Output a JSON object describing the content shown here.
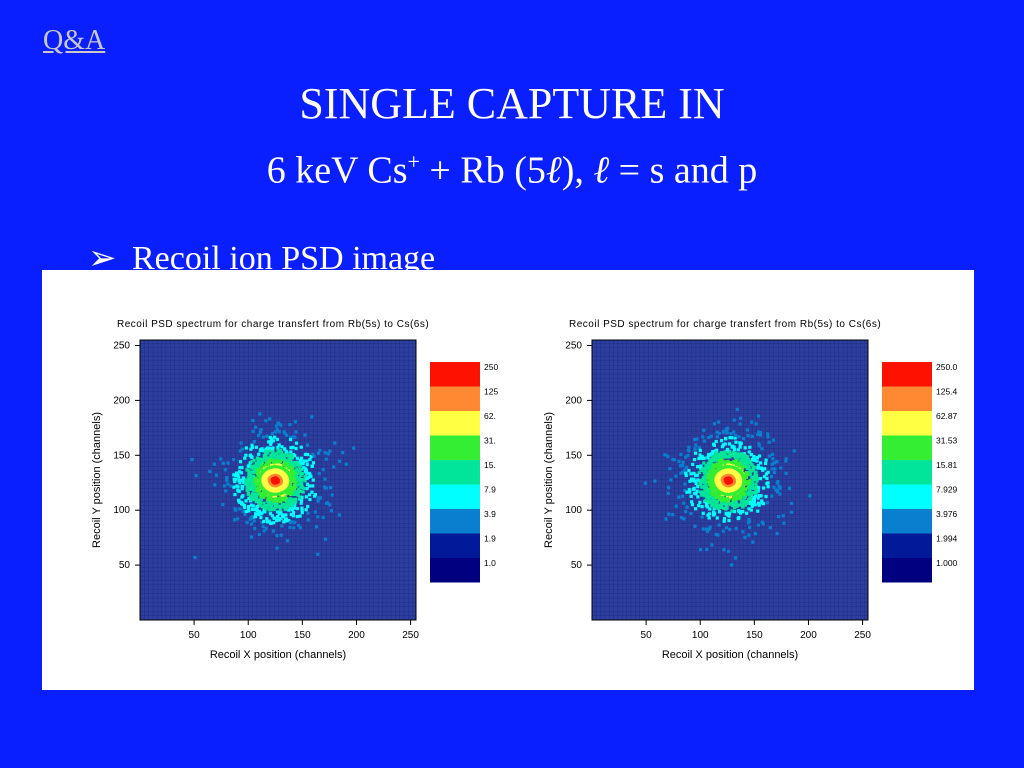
{
  "link": {
    "qa": "Q&A"
  },
  "slide": {
    "title": "SINGLE CAPTURE IN",
    "subtitle_prefix": "6 keV Cs",
    "subtitle_sup": "+",
    "subtitle_mid": " + Rb (5",
    "subtitle_ell": "ℓ",
    "subtitle_mid2": "), ",
    "subtitle_ell2": "ℓ",
    "subtitle_suffix": " = s and p",
    "bullet": "Recoil ion PSD image",
    "bullet_arrow": "➢"
  },
  "colors": {
    "background": "#0a1fff",
    "plot_bg": "#2d3f9e",
    "colormap": [
      "#000080",
      "#001a9a",
      "#0a7fd0",
      "#00ffff",
      "#00e59a",
      "#33ee33",
      "#ffff44",
      "#ff8833",
      "#ff1100"
    ]
  },
  "chart_data": [
    {
      "type": "heatmap",
      "title": "Recoil PSD spectrum for charge transfert from Rb(5s) to Cs(6s)",
      "xlabel": "Recoil X position (channels)",
      "ylabel": "Recoil Y position (channels)",
      "xlim": [
        0,
        255
      ],
      "ylim": [
        0,
        255
      ],
      "x_ticks": [
        "50",
        "100",
        "150",
        "200",
        "250"
      ],
      "y_ticks": [
        "50",
        "100",
        "150",
        "200",
        "250"
      ],
      "center": [
        125,
        127
      ],
      "peak": 250,
      "legend_levels": [
        "250",
        "125",
        "62.",
        "31.",
        "15.",
        "7.9",
        "3.9",
        "1.9",
        "1.0"
      ],
      "grid": true
    },
    {
      "type": "heatmap",
      "title": "Recoil PSD spectrum for charge transfert from Rb(5s) to Cs(6s)",
      "xlabel": "Recoil X position (channels)",
      "ylabel": "Recoil Y position (channels)",
      "xlim": [
        0,
        255
      ],
      "ylim": [
        0,
        255
      ],
      "x_ticks": [
        "50",
        "100",
        "150",
        "200",
        "250"
      ],
      "y_ticks": [
        "50",
        "100",
        "150",
        "200",
        "250"
      ],
      "center": [
        126,
        127
      ],
      "peak": 250,
      "legend_levels": [
        "250.0",
        "125.4",
        "62.87",
        "31.53",
        "15.81",
        "7.929",
        "3.976",
        "1.994",
        "1.000"
      ],
      "grid": true
    }
  ]
}
